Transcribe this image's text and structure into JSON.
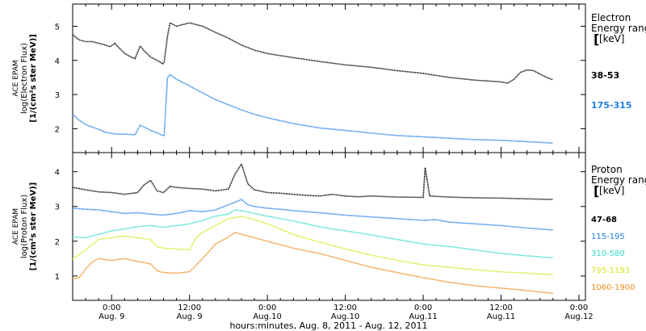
{
  "x_axis": {
    "label": "hours:minutes, Aug.  8, 2011 - Aug. 12, 2011",
    "ticks": [
      {
        "t": 0,
        "time": "0:00",
        "date": "Aug. 9"
      },
      {
        "t": 12,
        "time": "12:00",
        "date": "Aug. 9"
      },
      {
        "t": 24,
        "time": "0:00",
        "date": "Aug.10"
      },
      {
        "t": 36,
        "time": "12:00",
        "date": "Aug.10"
      },
      {
        "t": 48,
        "time": "0:00",
        "date": "Aug.11"
      },
      {
        "t": 60,
        "time": "12:00",
        "date": "Aug.11"
      },
      {
        "t": 72,
        "time": "0:00",
        "date": "Aug.12"
      }
    ]
  },
  "chart_data": [
    {
      "type": "line",
      "panel": "electron",
      "ylabel": [
        "ACE EPAM",
        "log(Electron Flux)",
        "[1/(cm²s ster MeV)]"
      ],
      "yticks": [
        2,
        3,
        4,
        5
      ],
      "ylim": [
        1.3,
        5.65
      ],
      "xlim": [
        -6,
        73
      ],
      "legend_title": [
        "Electron",
        "Energy range",
        "[keV]"
      ],
      "legend_placement": "right",
      "series": [
        {
          "name": "38-53",
          "color": "#000000",
          "x": [
            -6,
            -5,
            -4,
            -3,
            -2,
            -1,
            -0.2,
            0.5,
            2,
            3,
            3.6,
            4.4,
            5,
            6,
            7,
            7.9,
            8.1,
            8.6,
            9,
            10,
            11,
            12,
            13,
            14,
            16,
            18,
            20,
            22,
            24,
            28,
            32,
            36,
            40,
            44,
            48,
            52,
            56,
            60,
            61,
            62,
            63,
            64,
            65,
            66,
            67,
            68
          ],
          "y": [
            4.75,
            4.6,
            4.55,
            4.55,
            4.5,
            4.45,
            4.4,
            4.5,
            4.2,
            4.1,
            4.05,
            4.42,
            4.28,
            4.1,
            4.0,
            3.9,
            3.95,
            4.7,
            5.1,
            5.0,
            5.05,
            5.1,
            5.05,
            5.0,
            4.82,
            4.65,
            4.45,
            4.3,
            4.2,
            4.08,
            3.97,
            3.87,
            3.8,
            3.7,
            3.62,
            3.5,
            3.42,
            3.37,
            3.33,
            3.45,
            3.65,
            3.72,
            3.7,
            3.6,
            3.5,
            3.43
          ]
        },
        {
          "name": "175-315",
          "color": "#1e7fe6",
          "x": [
            -6,
            -5,
            -4,
            -3,
            -2,
            -1,
            0,
            1,
            2,
            3,
            3.6,
            4.4,
            5,
            6,
            7,
            7.9,
            8.1,
            8.6,
            9,
            10,
            11,
            12,
            13,
            14,
            16,
            18,
            20,
            22,
            24,
            28,
            32,
            36,
            40,
            44,
            48,
            52,
            56,
            60,
            62,
            64,
            66,
            68
          ],
          "y": [
            2.42,
            2.25,
            2.12,
            2.05,
            1.98,
            1.9,
            1.86,
            1.84,
            1.84,
            1.83,
            1.82,
            2.1,
            2.05,
            1.95,
            1.88,
            1.8,
            1.8,
            3.5,
            3.58,
            3.45,
            3.35,
            3.25,
            3.15,
            3.05,
            2.85,
            2.7,
            2.55,
            2.42,
            2.32,
            2.15,
            2.02,
            1.95,
            1.87,
            1.8,
            1.76,
            1.72,
            1.68,
            1.66,
            1.64,
            1.62,
            1.6,
            1.58
          ]
        }
      ]
    },
    {
      "type": "line",
      "panel": "proton",
      "ylabel": [
        "ACE EPAM",
        "log(Proton Flux)",
        "[1/(cm²s ster MeV)]"
      ],
      "yticks": [
        1,
        2,
        3,
        4
      ],
      "ylim": [
        0.3,
        4.55
      ],
      "xlim": [
        -6,
        73
      ],
      "legend_title": [
        "Proton",
        "Energy range",
        "[keV]"
      ],
      "legend_placement": "right",
      "series": [
        {
          "name": "47-68",
          "color": "#000000",
          "x": [
            -6,
            -4,
            -2,
            0,
            2,
            4,
            5,
            6,
            7,
            8,
            9,
            10,
            12,
            14,
            16,
            18,
            19,
            20,
            21,
            22,
            24,
            26,
            28,
            30,
            32,
            34,
            36,
            38,
            40,
            44,
            48,
            48.3,
            49,
            52,
            56,
            60,
            64,
            68
          ],
          "y": [
            3.55,
            3.48,
            3.42,
            3.4,
            3.35,
            3.4,
            3.62,
            3.75,
            3.45,
            3.4,
            3.58,
            3.55,
            3.52,
            3.5,
            3.45,
            3.5,
            3.92,
            4.22,
            3.65,
            3.48,
            3.4,
            3.38,
            3.35,
            3.32,
            3.3,
            3.35,
            3.3,
            3.28,
            3.3,
            3.27,
            3.26,
            4.12,
            3.3,
            3.27,
            3.25,
            3.24,
            3.22,
            3.2
          ]
        },
        {
          "name": "115-195",
          "color": "#1e7fe6",
          "x": [
            -6,
            -4,
            -2,
            0,
            2,
            4,
            6,
            8,
            10,
            12,
            14,
            16,
            18,
            19,
            20,
            21,
            22,
            24,
            26,
            28,
            30,
            32,
            36,
            40,
            44,
            48,
            50,
            52,
            56,
            60,
            64,
            68
          ],
          "y": [
            2.95,
            2.92,
            2.9,
            2.85,
            2.8,
            2.82,
            2.78,
            2.75,
            2.8,
            2.88,
            2.85,
            2.9,
            3.05,
            3.12,
            3.2,
            3.05,
            3.0,
            2.95,
            2.92,
            2.88,
            2.85,
            2.82,
            2.75,
            2.7,
            2.65,
            2.6,
            2.62,
            2.55,
            2.5,
            2.45,
            2.38,
            2.32
          ]
        },
        {
          "name": "310-580",
          "color": "#33dcc8",
          "x": [
            -6,
            -4,
            -2,
            0,
            2,
            4,
            6,
            8,
            10,
            12,
            14,
            16,
            18,
            19,
            20,
            22,
            24,
            26,
            28,
            30,
            32,
            34,
            36,
            40,
            44,
            48,
            52,
            56,
            60,
            64,
            68
          ],
          "y": [
            2.12,
            2.1,
            2.2,
            2.3,
            2.35,
            2.42,
            2.45,
            2.4,
            2.45,
            2.5,
            2.6,
            2.72,
            2.78,
            2.9,
            2.88,
            2.8,
            2.72,
            2.65,
            2.58,
            2.5,
            2.42,
            2.35,
            2.3,
            2.18,
            2.05,
            1.92,
            1.85,
            1.75,
            1.65,
            1.58,
            1.52
          ]
        },
        {
          "name": "795-1193",
          "color": "#d8e61e",
          "x": [
            -6,
            -4,
            -2,
            0,
            2,
            4,
            6,
            7,
            8,
            10,
            12,
            13,
            14,
            16,
            18,
            20,
            22,
            24,
            26,
            28,
            30,
            32,
            36,
            40,
            44,
            48,
            52,
            56,
            60,
            64,
            68
          ],
          "y": [
            1.48,
            1.75,
            2.05,
            2.1,
            2.15,
            2.1,
            2.05,
            1.85,
            1.8,
            1.78,
            1.75,
            2.1,
            2.25,
            2.45,
            2.65,
            2.72,
            2.62,
            2.5,
            2.35,
            2.2,
            2.08,
            1.98,
            1.78,
            1.6,
            1.45,
            1.32,
            1.25,
            1.18,
            1.12,
            1.08,
            1.04
          ]
        },
        {
          "name": "1060-1900",
          "color": "#f08a1e",
          "x": [
            -6,
            -5,
            -4,
            -3,
            -2,
            0,
            2,
            4,
            6,
            7,
            8,
            10,
            12,
            14,
            15,
            16,
            18,
            19,
            20,
            22,
            24,
            26,
            28,
            30,
            32,
            34,
            36,
            40,
            44,
            48,
            52,
            56,
            60,
            64,
            68
          ],
          "y": [
            0.92,
            0.95,
            1.2,
            1.4,
            1.5,
            1.45,
            1.5,
            1.42,
            1.35,
            1.15,
            1.1,
            1.08,
            1.12,
            1.5,
            1.7,
            1.92,
            2.12,
            2.25,
            2.2,
            2.1,
            2.0,
            1.9,
            1.8,
            1.72,
            1.65,
            1.55,
            1.45,
            1.25,
            1.1,
            0.95,
            0.82,
            0.72,
            0.65,
            0.58,
            0.5
          ]
        }
      ]
    }
  ]
}
